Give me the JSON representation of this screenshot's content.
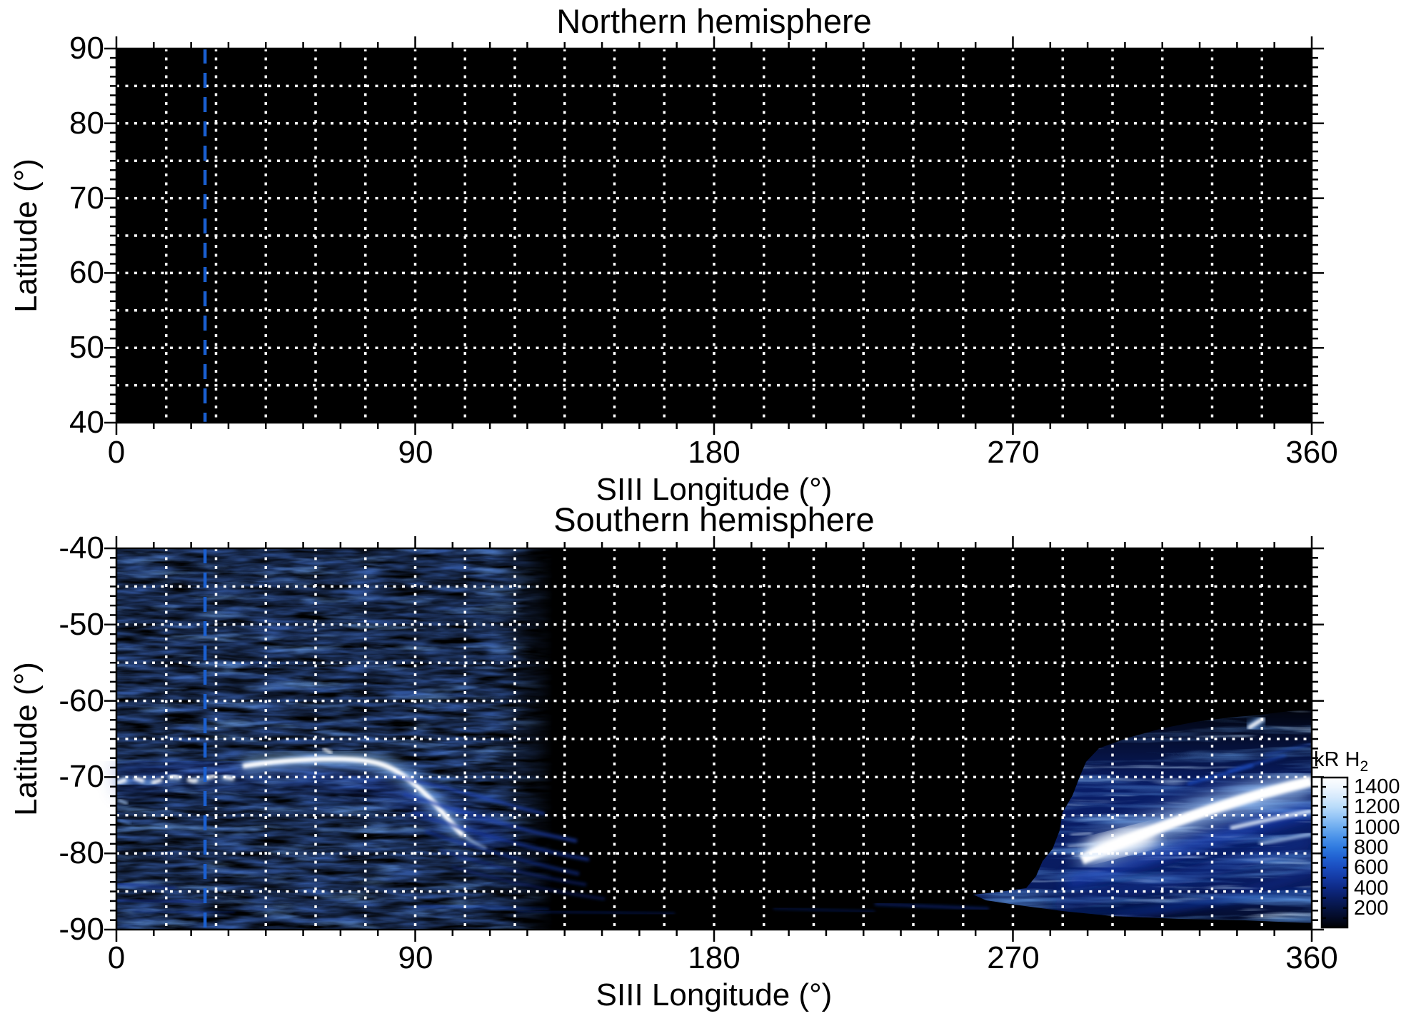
{
  "north": {
    "title": "Northern hemisphere",
    "xlabel": "SIII Longitude (°)",
    "ylabel": "Latitude (°)",
    "x_tick_labels": [
      "0",
      "90",
      "180",
      "270",
      "360"
    ],
    "y_tick_labels": [
      "90",
      "80",
      "70",
      "60",
      "50",
      "40"
    ]
  },
  "south": {
    "title": "Southern hemisphere",
    "xlabel": "SIII Longitude (°)",
    "ylabel": "Latitude (°)",
    "x_tick_labels": [
      "0",
      "90",
      "180",
      "270",
      "360"
    ],
    "y_tick_labels": [
      "-40",
      "-50",
      "-60",
      "-70",
      "-80",
      "-90"
    ]
  },
  "colorbar": {
    "title_main": "kR H",
    "title_sub": "2",
    "tick_labels": [
      "1400",
      "1200",
      "1000",
      "800",
      "600",
      "400",
      "200"
    ],
    "value_range": [
      0,
      1500
    ]
  },
  "chart_data": [
    {
      "type": "heatmap",
      "title": "Northern hemisphere",
      "xlabel": "SIII Longitude (°)",
      "ylabel": "Latitude (°)",
      "xlim": [
        0,
        360
      ],
      "ylim": [
        40,
        90
      ],
      "x_major_ticks": [
        0,
        90,
        180,
        270,
        360
      ],
      "x_minor_step_deg": 11.25,
      "y_major_ticks": [
        90,
        80,
        70,
        60,
        50,
        40
      ],
      "y_minor_step_deg": 1.25,
      "grid": {
        "on": true,
        "x_spacing_deg": 15,
        "y_spacing_deg": 5,
        "style": "white dotted"
      },
      "reference_line": {
        "orientation": "vertical",
        "style": "dashed",
        "x_deg": 26.7,
        "color": "#1a5fd0"
      },
      "background": "#000000",
      "values_summary": "no detectable emission; entire map near 0 kR (solid black)"
    },
    {
      "type": "heatmap",
      "title": "Southern hemisphere",
      "xlabel": "SIII Longitude (°)",
      "ylabel": "Latitude (°)",
      "xlim": [
        0,
        360
      ],
      "ylim": [
        -90,
        -40
      ],
      "x_major_ticks": [
        0,
        90,
        180,
        270,
        360
      ],
      "x_minor_step_deg": 11.25,
      "y_major_ticks": [
        -40,
        -50,
        -60,
        -70,
        -80,
        -90
      ],
      "y_minor_step_deg": 1.25,
      "grid": {
        "on": true,
        "x_spacing_deg": 15,
        "y_spacing_deg": 5,
        "style": "white dotted"
      },
      "reference_line": {
        "orientation": "vertical",
        "style": "dashed",
        "x_deg": 26.7,
        "color": "#1a5fd0"
      },
      "background": "#000000",
      "colorbar": {
        "label": "kR H2",
        "min": 0,
        "max": 1500,
        "labeled_ticks": [
          200,
          400,
          600,
          800,
          1000,
          1200,
          1400
        ],
        "tick_step": 100,
        "colormap": "black → dark blue → blue → white",
        "position": "right, lower"
      },
      "features": [
        {
          "name": "main auroral arc",
          "lon_range": [
            0,
            75
          ],
          "lat_deg": -69.5,
          "peak_kR": 1400,
          "note": "patchy 0–35°, continuous bright 38–75°"
        },
        {
          "name": "arc equatorward descent",
          "lon_range": [
            75,
            108
          ],
          "lat_range": [
            -69,
            -77.5
          ],
          "peak_kR": 1300
        },
        {
          "name": "diffuse fan of streaks below arc",
          "lon_range": [
            85,
            150
          ],
          "lat_range": [
            -73,
            -86
          ],
          "peak_kR": 400
        },
        {
          "name": "observed-sector background speckle",
          "lon_range": [
            0,
            130
          ],
          "lat_range": [
            -90,
            -40
          ],
          "peak_kR": 150
        },
        {
          "name": "faint near-pole streaks",
          "lon_range": [
            115,
            265
          ],
          "lat_range": [
            -88,
            -85
          ],
          "peak_kR": 200
        },
        {
          "name": "bright dusk-sector emission region",
          "lon_range": [
            280,
            360
          ],
          "lat_range": [
            -88,
            -61
          ],
          "peak_kR": 900
        },
        {
          "name": "saturated white arc core",
          "lon_range": [
            292,
            360
          ],
          "lat_range": [
            -81,
            -70
          ],
          "peak_kR": 1500
        },
        {
          "name": "isolated bright arc segment",
          "lon_deg": 342,
          "lat_deg": -63,
          "peak_kR": 1400
        }
      ]
    }
  ]
}
